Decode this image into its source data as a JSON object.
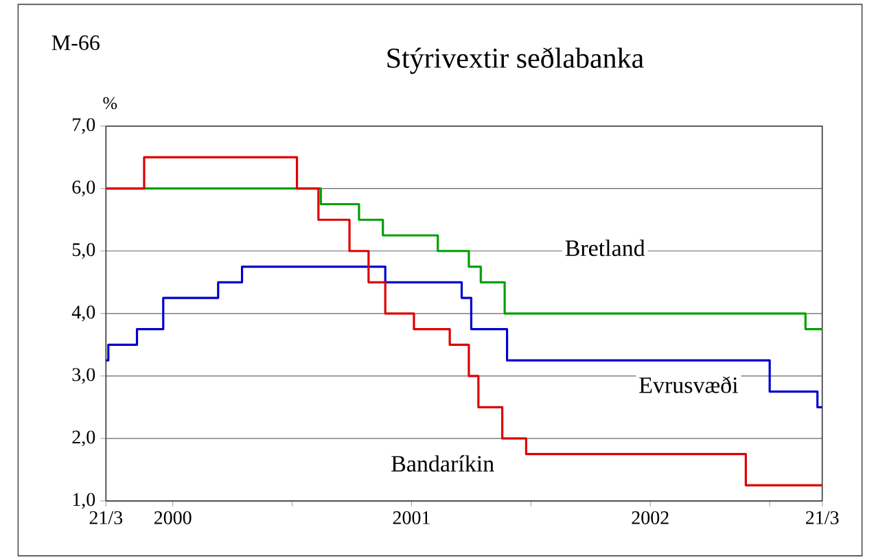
{
  "chart_data": {
    "type": "step",
    "title": "Stýrivextir seðlabanka",
    "ylabel": "%",
    "annotations": [
      "M-66"
    ],
    "xlim": [
      2000.22,
      2003.22
    ],
    "xticks": [
      {
        "value": 2000.22,
        "label": "21/3"
      },
      {
        "value": 2000.5,
        "label": "2000"
      },
      {
        "value": 2001,
        "label": null
      },
      {
        "value": 2001.5,
        "label": "2001"
      },
      {
        "value": 2002,
        "label": null
      },
      {
        "value": 2002.5,
        "label": "2002"
      },
      {
        "value": 2003,
        "label": null
      },
      {
        "value": 2003.22,
        "label": "21/3"
      }
    ],
    "ylim": [
      1,
      7
    ],
    "yticks": [
      {
        "value": 1,
        "label": "1,0"
      },
      {
        "value": 2,
        "label": "2,0"
      },
      {
        "value": 3,
        "label": "3,0"
      },
      {
        "value": 4,
        "label": "4,0"
      },
      {
        "value": 5,
        "label": "5,0"
      },
      {
        "value": 6,
        "label": "6,0"
      },
      {
        "value": 7,
        "label": "7,0"
      }
    ],
    "grid": "y",
    "legend": false,
    "line_style": "solid",
    "marker": "none",
    "series": [
      {
        "name": "Bretland",
        "color": "#00a000",
        "x": [
          2000.22,
          2001.12,
          2001.28,
          2001.38,
          2001.61,
          2001.74,
          2001.79,
          2001.89,
          2003.15,
          2003.22
        ],
        "values": [
          6.0,
          5.75,
          5.5,
          5.25,
          5.0,
          4.75,
          4.5,
          4.0,
          3.75,
          3.75
        ]
      },
      {
        "name": "Evrusvæði",
        "color": "#0000cc",
        "x": [
          2000.22,
          2000.23,
          2000.35,
          2000.46,
          2000.69,
          2000.79,
          2001.39,
          2001.71,
          2001.75,
          2001.9,
          2003.0,
          2003.2,
          2003.22
        ],
        "values": [
          3.25,
          3.5,
          3.75,
          4.25,
          4.5,
          4.75,
          4.5,
          4.25,
          3.75,
          3.25,
          2.75,
          2.5,
          2.5
        ]
      },
      {
        "name": "Bandaríkin",
        "color": "#dd0000",
        "x": [
          2000.22,
          2000.38,
          2001.02,
          2001.11,
          2001.24,
          2001.32,
          2001.39,
          2001.51,
          2001.66,
          2001.74,
          2001.78,
          2001.88,
          2001.98,
          2002.9,
          2003.22
        ],
        "values": [
          6.0,
          6.5,
          6.0,
          5.5,
          5.0,
          4.5,
          4.0,
          3.75,
          3.5,
          3.0,
          2.5,
          2.0,
          1.75,
          1.25,
          1.25
        ]
      }
    ]
  }
}
